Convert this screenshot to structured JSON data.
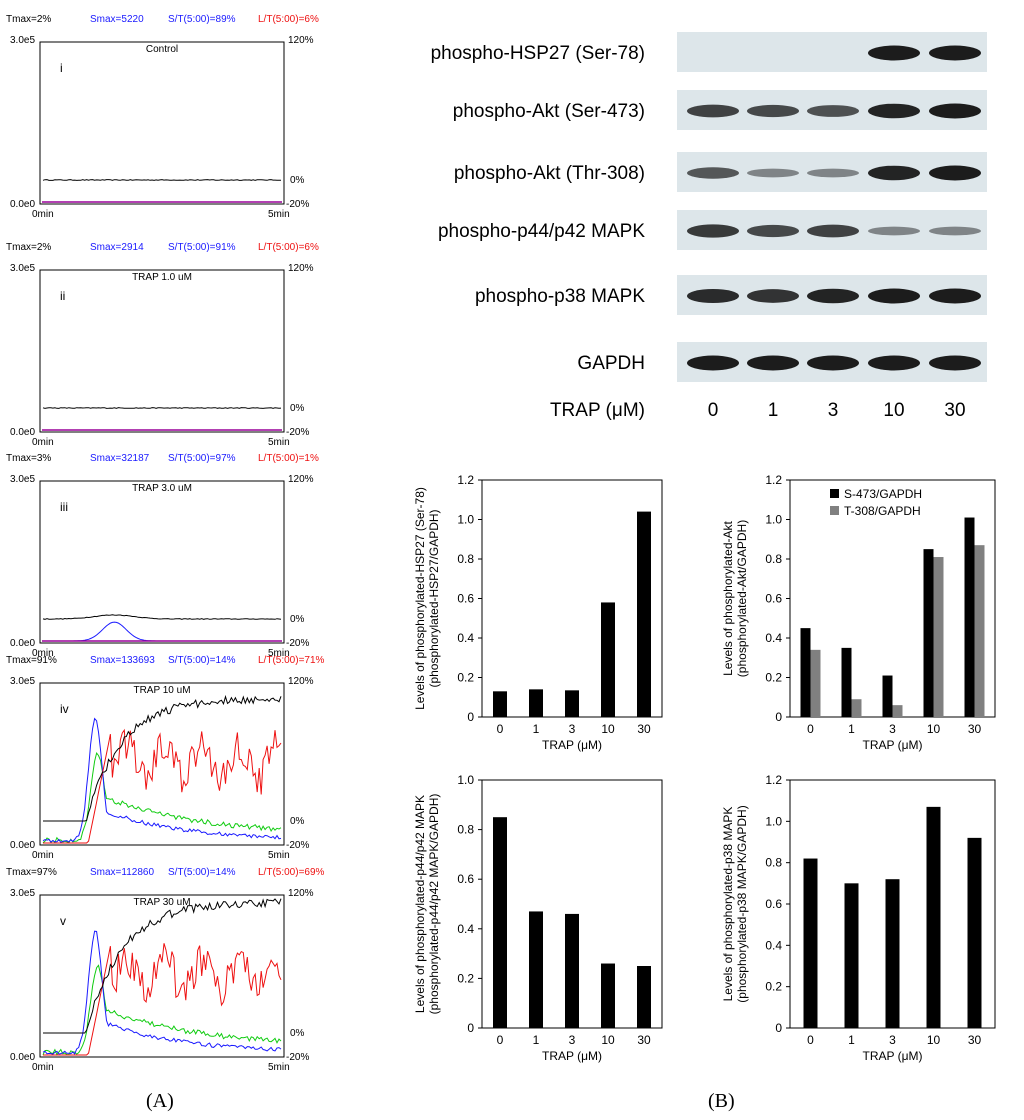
{
  "panel_labels": {
    "a": "(A)",
    "b": "(B)"
  },
  "aggregometry": {
    "axis": {
      "y_top": "3.0e5",
      "y_bottom": "0.0e0",
      "r_top": "120%",
      "r_zero": "0%",
      "r_bottom": "-20%",
      "x_start": "0min",
      "x_end": "5min"
    },
    "colors": {
      "black": "#000000",
      "blue": "#1a1aff",
      "red": "#ee1111",
      "green": "#11cc11",
      "purple": "#990099"
    },
    "panels": [
      {
        "roman": "i",
        "title": "Control",
        "tmax": "Tmax=2%",
        "smax": "Smax=5220",
        "st": "S/T(5:00)=89%",
        "lt": "L/T(5:00)=6%",
        "black_level": 0.0
      },
      {
        "roman": "ii",
        "title": "TRAP 1.0 uM",
        "tmax": "Tmax=2%",
        "smax": "Smax=2914",
        "st": "S/T(5:00)=91%",
        "lt": "L/T(5:00)=6%",
        "black_level": 0.0
      },
      {
        "roman": "iii",
        "title": "TRAP 3.0 uM",
        "tmax": "Tmax=3%",
        "smax": "Smax=32187",
        "st": "S/T(5:00)=97%",
        "lt": "L/T(5:00)=1%",
        "black_level": 0.03
      },
      {
        "roman": "iv",
        "title": "TRAP 10 uM",
        "tmax": "Tmax=91%",
        "smax": "Smax=133693",
        "st": "S/T(5:00)=14%",
        "lt": "L/T(5:00)=71%",
        "black_level": 0.91
      },
      {
        "roman": "v",
        "title": "TRAP 30 uM",
        "tmax": "Tmax=97%",
        "smax": "Smax=112860",
        "st": "S/T(5:00)=14%",
        "lt": "L/T(5:00)=69%",
        "black_level": 0.97
      }
    ]
  },
  "blots": {
    "labels": [
      "phospho-HSP27 (Ser-78)",
      "phospho-Akt (Ser-473)",
      "phospho-Akt (Thr-308)",
      "phospho-p44/p42 MAPK",
      "phospho-p38 MAPK",
      "GAPDH"
    ],
    "trap_label": "TRAP (μM)",
    "concentrations": [
      "0",
      "1",
      "3",
      "10",
      "30"
    ],
    "intensities": [
      [
        0.0,
        0.0,
        0.0,
        1.0,
        1.0
      ],
      [
        0.75,
        0.7,
        0.65,
        0.95,
        1.0
      ],
      [
        0.6,
        0.3,
        0.3,
        0.95,
        1.0
      ],
      [
        0.8,
        0.7,
        0.75,
        0.3,
        0.3
      ],
      [
        0.9,
        0.85,
        0.95,
        1.0,
        1.0
      ],
      [
        1.0,
        1.0,
        1.0,
        1.0,
        1.0
      ]
    ]
  },
  "chart_data": [
    {
      "type": "bar",
      "categories": [
        "0",
        "1",
        "3",
        "10",
        "30"
      ],
      "values": [
        0.13,
        0.14,
        0.135,
        0.58,
        1.04
      ],
      "ylabel_1": "Levels of phosphorylated-HSP27 (Ser-78)",
      "ylabel_2": "(phosphorylated-HSP27/GAPDH)",
      "xlabel": "TRAP (μM)",
      "ylim": [
        0,
        1.2
      ],
      "yticks": [
        "0",
        "0.2",
        "0.4",
        "0.6",
        "0.8",
        "1.0",
        "1.2"
      ]
    },
    {
      "type": "bar",
      "categories": [
        "0",
        "1",
        "3",
        "10",
        "30"
      ],
      "series": [
        {
          "name": "S-473/GAPDH",
          "color": "#000000",
          "values": [
            0.45,
            0.35,
            0.21,
            0.85,
            1.01
          ]
        },
        {
          "name": "T-308/GAPDH",
          "color": "#808080",
          "values": [
            0.34,
            0.09,
            0.06,
            0.81,
            0.87
          ]
        }
      ],
      "ylabel_1": "Levels of phosphorylated-Akt",
      "ylabel_2": "(phosphorylated-Akt/GAPDH)",
      "xlabel": "TRAP (μM)",
      "ylim": [
        0,
        1.2
      ],
      "yticks": [
        "0",
        "0.2",
        "0.4",
        "0.6",
        "0.8",
        "1.0",
        "1.2"
      ],
      "legend": "top-left"
    },
    {
      "type": "bar",
      "categories": [
        "0",
        "1",
        "3",
        "10",
        "30"
      ],
      "values": [
        0.85,
        0.47,
        0.46,
        0.26,
        0.25
      ],
      "ylabel_1": "Levels of phosphorylated-p44/p42 MAPK",
      "ylabel_2": "(phosphorylated-p44/p42 MAPK/GAPDH)",
      "xlabel": "TRAP (μM)",
      "ylim": [
        0,
        1.0
      ],
      "yticks": [
        "0",
        "0.2",
        "0.4",
        "0.6",
        "0.8",
        "1.0"
      ]
    },
    {
      "type": "bar",
      "categories": [
        "0",
        "1",
        "3",
        "10",
        "30"
      ],
      "values": [
        0.82,
        0.7,
        0.72,
        1.07,
        0.92
      ],
      "ylabel_1": "Levels of phosphorylated-p38 MAPK",
      "ylabel_2": "(phosphorylated-p38 MAPK/GAPDH)",
      "xlabel": "TRAP (μM)",
      "ylim": [
        0,
        1.2
      ],
      "yticks": [
        "0",
        "0.2",
        "0.4",
        "0.6",
        "0.8",
        "1.0",
        "1.2"
      ]
    }
  ]
}
